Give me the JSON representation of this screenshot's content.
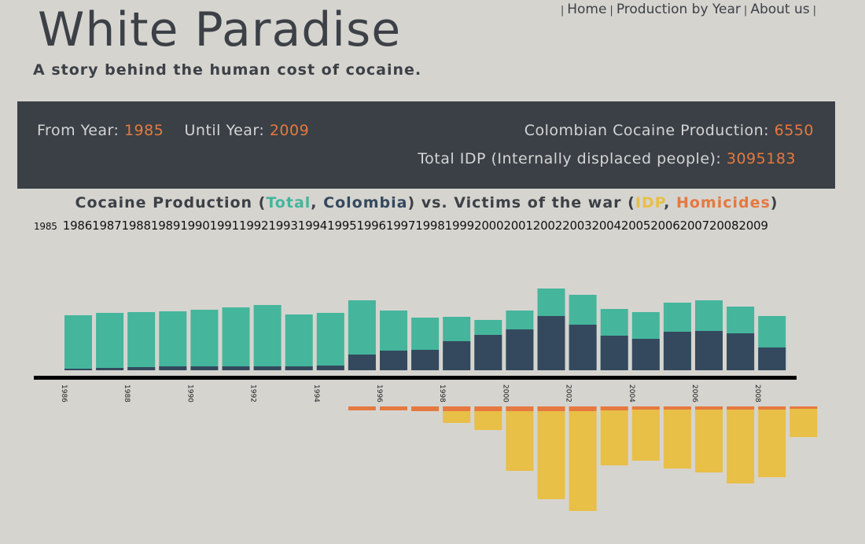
{
  "header": {
    "title": "White Paradise",
    "tagline": "A story behind the human cost of cocaine."
  },
  "nav": {
    "items": [
      "Home",
      "Production by Year",
      "About us"
    ],
    "separator": "|"
  },
  "summary": {
    "from_label": "From Year:",
    "from_value": "1985",
    "until_label": "Until Year:",
    "until_value": "2009",
    "production_label": "Colombian Cocaine Production:",
    "production_value": "6550",
    "idp_label": "Total IDP (Internally displaced people):",
    "idp_value": "3095183"
  },
  "chart_title": {
    "prefix": "Cocaine Production (",
    "total": "Total",
    "comma1": ", ",
    "colombia": "Colombia",
    "middle": ") vs. Victims of the war (",
    "idp": "IDP",
    "comma2": ", ",
    "homicides": "Homicides",
    "suffix": ")"
  },
  "year_links": [
    "1985",
    "1986",
    "1987",
    "1988",
    "1989",
    "1990",
    "1991",
    "1992",
    "1993",
    "1994",
    "1995",
    "1996",
    "1997",
    "1998",
    "1999",
    "2000",
    "2001",
    "2002",
    "2003",
    "2004",
    "2005",
    "2006",
    "2007",
    "2008",
    "2009"
  ],
  "colors": {
    "total": "#45b59c",
    "colombia": "#34495e",
    "idp": "#e8bf47",
    "homicides": "#e5793f",
    "axis": "#000000",
    "panel": "#3a4045"
  },
  "chart_data": {
    "type": "bar",
    "categories": [
      "1986",
      "1987",
      "1988",
      "1989",
      "1990",
      "1991",
      "1992",
      "1993",
      "1994",
      "1995",
      "1996",
      "1997",
      "1998",
      "1999",
      "2000",
      "2001",
      "2002",
      "2003",
      "2004",
      "2005",
      "2006",
      "2007",
      "2008",
      "2009"
    ],
    "tick_labels": [
      "1986",
      "1988",
      "1990",
      "1992",
      "1994",
      "1996",
      "1998",
      "2000",
      "2002",
      "2004",
      "2006",
      "2008"
    ],
    "production": [
      {
        "name": "Total",
        "values": [
          70,
          73,
          74,
          75,
          77,
          80,
          83,
          71,
          73,
          89,
          76,
          67,
          68,
          64,
          76,
          104,
          96,
          78,
          74,
          86,
          89,
          81,
          69,
          null
        ]
      },
      {
        "name": "Colombia",
        "values": [
          2,
          3,
          4,
          5,
          5,
          5,
          5,
          5,
          6,
          20,
          25,
          26,
          37,
          45,
          52,
          69,
          58,
          44,
          40,
          49,
          50,
          47,
          29,
          null
        ]
      }
    ],
    "victims": [
      {
        "name": "IDP",
        "values": [
          null,
          null,
          null,
          null,
          null,
          null,
          null,
          null,
          null,
          0,
          0,
          5,
          21,
          30,
          82,
          118,
          133,
          75,
          69,
          79,
          84,
          98,
          90,
          39
        ]
      },
      {
        "name": "Homicides",
        "values": [
          null,
          null,
          null,
          null,
          null,
          null,
          null,
          null,
          null,
          5,
          5,
          6,
          6,
          6,
          6,
          6,
          6,
          5,
          4,
          4,
          4,
          4,
          4,
          3
        ]
      }
    ]
  }
}
